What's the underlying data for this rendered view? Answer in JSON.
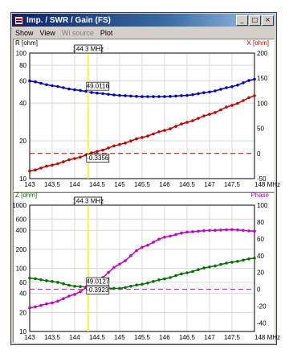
{
  "window": {
    "title": "Imp. / SWR / Gain (FS)",
    "buttons": {
      "minimize": "_",
      "maximize": "□",
      "close": "×"
    }
  },
  "menu": [
    {
      "label": "Show",
      "enabled": true
    },
    {
      "label": "View",
      "enabled": true
    },
    {
      "label": "Wi source",
      "enabled": false
    },
    {
      "label": "Plot",
      "enabled": true
    }
  ],
  "colors": {
    "series_R": "#0000c0",
    "series_X": "#c00000",
    "series_Z": "#007000",
    "series_Phase": "#c000c0",
    "marker": "#ffff00",
    "left_axis_top": "#000000",
    "right_axis_top": "#c00000",
    "left_axis_bottom": "#007000",
    "right_axis_bottom": "#c000c0"
  },
  "chart_data": [
    {
      "type": "line",
      "xlabel": "MHz",
      "ylabel": "R [ohm]",
      "y2label": "X [ohm]",
      "xlim": [
        143,
        148
      ],
      "ylim": [
        10,
        100
      ],
      "yscale": "log",
      "y2lim": [
        -50,
        200
      ],
      "x_ticks": [
        143,
        143.5,
        144,
        144.5,
        145,
        145.5,
        146,
        146.5,
        147,
        147.5,
        148
      ],
      "x_tick_labels": [
        "143",
        "143.5",
        "144",
        "144.5",
        "145",
        "145.5",
        "146",
        "146.5",
        "147",
        "147.5",
        "148 MHz"
      ],
      "y_ticks": [
        10,
        20,
        40,
        60,
        80,
        100
      ],
      "y_tick_labels": [
        "10",
        "20",
        "40",
        "60",
        "80",
        "100"
      ],
      "y2_ticks": [
        -50,
        0,
        50,
        100,
        150,
        200
      ],
      "y2_tick_labels": [
        "-50",
        "0",
        "50",
        "100",
        "150",
        "200"
      ],
      "marker": {
        "x": 144.3,
        "label": "144.3 MHz"
      },
      "readouts": [
        {
          "series": "R [ohm]",
          "value": "49.0116"
        },
        {
          "series": "X [ohm]",
          "value": "-0.3356"
        }
      ],
      "series": [
        {
          "name": "R [ohm]",
          "axis": "left",
          "x": [
            143,
            143.5,
            144,
            144.5,
            145,
            145.5,
            146,
            146.5,
            147,
            147.5,
            148
          ],
          "values": [
            60,
            55,
            51,
            48,
            46,
            45,
            45,
            46,
            49,
            54,
            62
          ]
        },
        {
          "name": "X [ohm]",
          "axis": "right",
          "x": [
            143,
            143.5,
            144,
            144.5,
            145,
            145.5,
            146,
            146.5,
            147,
            147.5,
            148
          ],
          "values": [
            -35,
            -23,
            -10,
            4,
            18,
            32,
            46,
            62,
            78,
            96,
            115
          ]
        }
      ],
      "reference_line": {
        "axis": "right",
        "value": 0
      }
    },
    {
      "type": "line",
      "xlabel": "MHz",
      "ylabel": "Z [ohm]",
      "y2label": "Phase",
      "xlim": [
        143,
        148
      ],
      "ylim": [
        10,
        1000
      ],
      "yscale": "log",
      "y2lim": [
        -50,
        100
      ],
      "x_ticks": [
        143,
        143.5,
        144,
        144.5,
        145,
        145.5,
        146,
        146.5,
        147,
        147.5,
        148
      ],
      "x_tick_labels": [
        "143",
        "143.5",
        "144",
        "144.5",
        "145",
        "145.5",
        "146",
        "146.5",
        "147",
        "147.5",
        "148 MHz"
      ],
      "y_ticks": [
        10,
        20,
        40,
        60,
        100,
        200,
        400,
        600,
        1000
      ],
      "y_tick_labels": [
        "10",
        "20",
        "40",
        "60",
        "100",
        "200",
        "400",
        "600",
        "1000"
      ],
      "y2_ticks": [
        -40,
        -20,
        0,
        20,
        40,
        60,
        80,
        100
      ],
      "y2_tick_labels": [
        "-40",
        "-20",
        "0",
        "20",
        "40",
        "60",
        "80",
        "100"
      ],
      "marker": {
        "x": 144.3,
        "label": "144.3 MHz"
      },
      "readouts": [
        {
          "series": "Z [ohm]",
          "value": "49.0127"
        },
        {
          "series": "Phase",
          "value": "-0.3923"
        }
      ],
      "series": [
        {
          "name": "Z [ohm]",
          "axis": "left",
          "x": [
            143,
            143.5,
            144,
            144.5,
            145,
            145.5,
            146,
            146.5,
            147,
            147.5,
            148
          ],
          "values": [
            70,
            62,
            52,
            49,
            48,
            56,
            68,
            85,
            105,
            125,
            145
          ]
        },
        {
          "name": "Phase",
          "axis": "right",
          "x": [
            143,
            143.5,
            144,
            144.5,
            145,
            145.5,
            146,
            146.5,
            147,
            147.5,
            148
          ],
          "values": [
            -22,
            -16,
            -6,
            10,
            30,
            50,
            62,
            68,
            70,
            71,
            69
          ]
        }
      ],
      "reference_line": {
        "axis": "right",
        "value": 0
      }
    }
  ]
}
